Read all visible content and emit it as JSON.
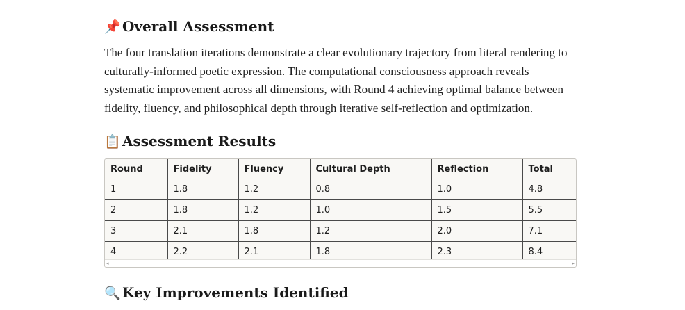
{
  "overall": {
    "icon": "pushpin-icon",
    "emoji": "📌",
    "title": "Overall Assessment",
    "paragraph": "The four translation iterations demonstrate a clear evolutionary trajectory from literal rendering to culturally-informed poetic expression. The computational consciousness approach reveals systematic improvement across all dimensions, with Round 4 achieving optimal balance between fidelity, fluency, and philosophical depth through iterative self-reflection and optimization."
  },
  "results": {
    "icon": "clipboard-icon",
    "emoji": "📋",
    "title": "Assessment Results",
    "headers": [
      "Round",
      "Fidelity",
      "Fluency",
      "Cultural Depth",
      "Reflection",
      "Total"
    ],
    "rows": [
      [
        "1",
        "1.8",
        "1.2",
        "0.8",
        "1.0",
        "4.8"
      ],
      [
        "2",
        "1.8",
        "1.2",
        "1.0",
        "1.5",
        "5.5"
      ],
      [
        "3",
        "2.1",
        "1.8",
        "1.2",
        "2.0",
        "7.1"
      ],
      [
        "4",
        "2.2",
        "2.1",
        "1.8",
        "2.3",
        "8.4"
      ]
    ],
    "scroll_left": "◂",
    "scroll_right": "▸"
  },
  "improvements": {
    "icon": "magnifier-icon",
    "emoji": "🔍",
    "title": "Key Improvements Identified"
  }
}
